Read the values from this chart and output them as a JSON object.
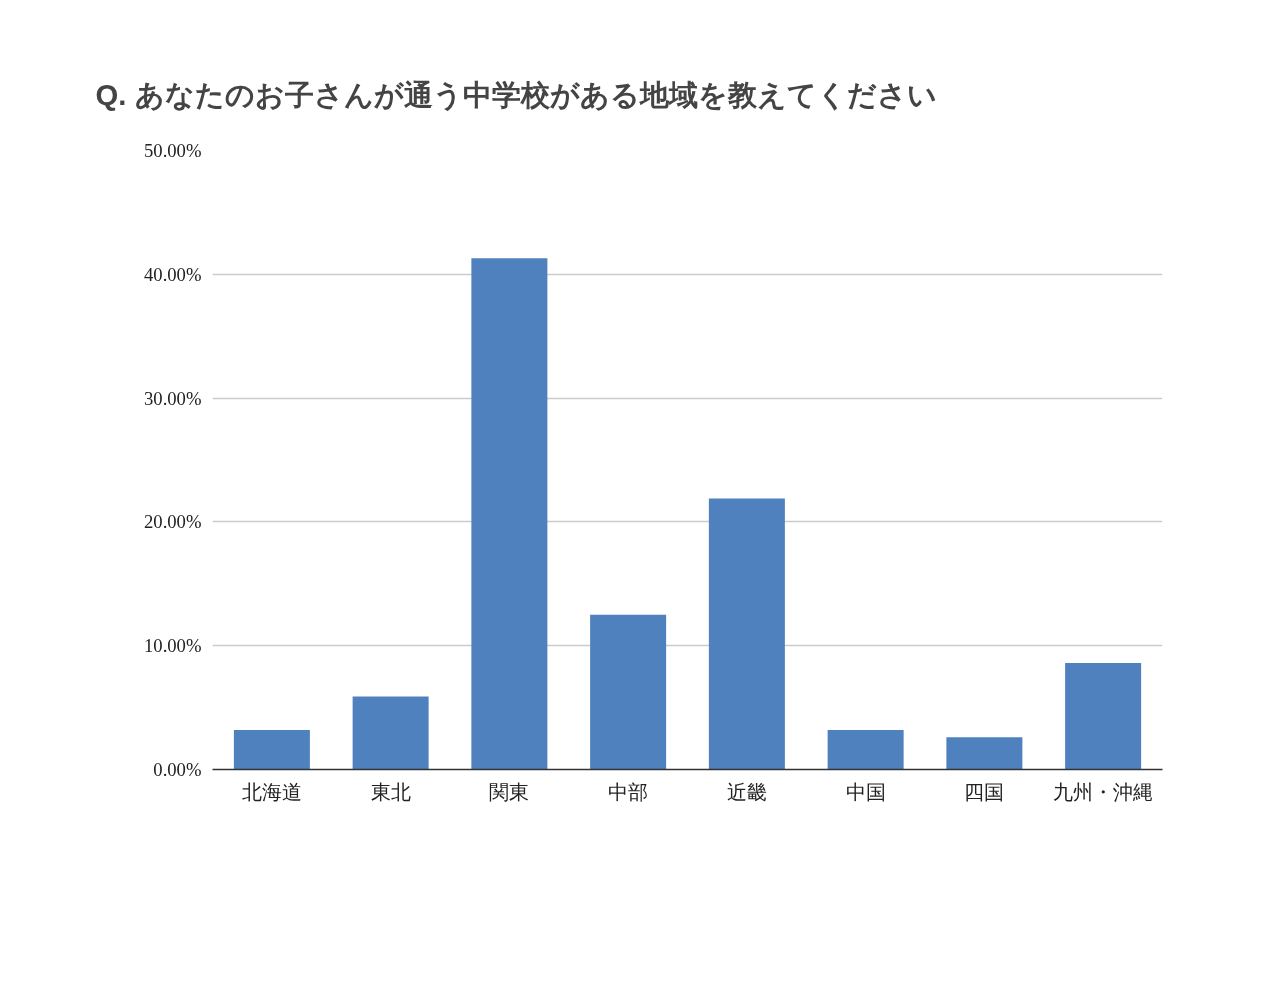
{
  "chart_data": {
    "type": "bar",
    "title": "Q. あなたのお子さんが通う中学校がある地域を教えてください",
    "categories": [
      "北海道",
      "東北",
      "関東",
      "中部",
      "近畿",
      "中国",
      "四国",
      "九州・沖縄"
    ],
    "values": [
      3.2,
      5.9,
      41.3,
      12.5,
      21.9,
      3.2,
      2.6,
      8.6
    ],
    "color": "#4e81bd",
    "ylim": [
      0,
      50
    ],
    "yticks": [
      {
        "value": 0,
        "label": "0.00%"
      },
      {
        "value": 10,
        "label": "10.00%"
      },
      {
        "value": 20,
        "label": "20.00%"
      },
      {
        "value": 30,
        "label": "30.00%"
      },
      {
        "value": 40,
        "label": "40.00%"
      },
      {
        "value": 50,
        "label": "50.00%"
      }
    ],
    "grid": "y"
  }
}
